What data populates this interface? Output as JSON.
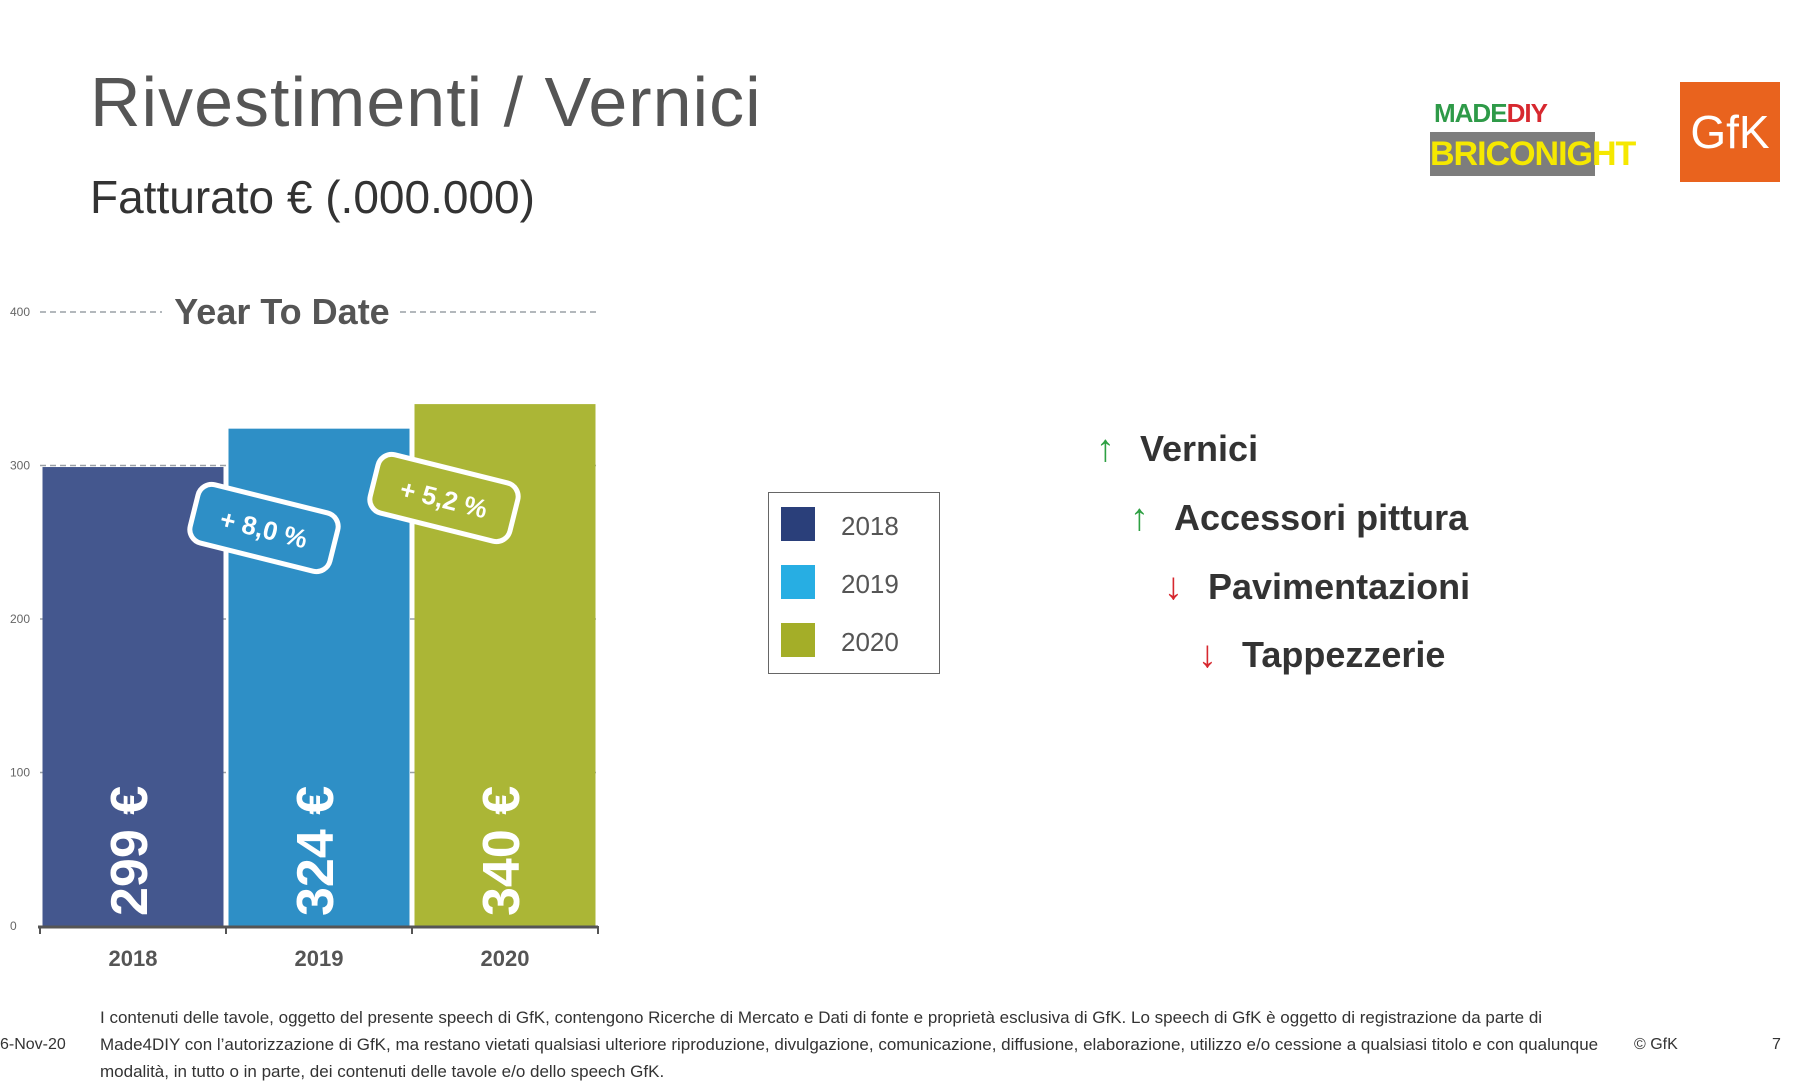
{
  "slide": {
    "title": "Rivestimenti / Vernici",
    "subtitle": "Fatturato € (.000.000)"
  },
  "logos": {
    "made4diy_top_a": "MADE",
    "made4diy_top_b": "DIY",
    "made4diy_bottom": "BRICONIGHT",
    "gfk": "GfK"
  },
  "chart_data": {
    "type": "bar",
    "title": "Year To Date",
    "categories": [
      "2018",
      "2019",
      "2020"
    ],
    "values": [
      299,
      324,
      340
    ],
    "value_labels": [
      "299 €",
      "324 €",
      "340 €"
    ],
    "colors": [
      "#44578e",
      "#2e8fc6",
      "#abb636"
    ],
    "ylim": [
      0,
      400
    ],
    "yticks": [
      0,
      100,
      200,
      300,
      400
    ],
    "grid": true,
    "annotations": [
      {
        "text": "+ 8,0 %",
        "between": [
          "2018",
          "2019"
        ],
        "color": "#2e8fc6"
      },
      {
        "text": "+ 5,2 %",
        "between": [
          "2019",
          "2020"
        ],
        "color": "#abb636"
      }
    ],
    "legend": {
      "placement": "right",
      "items": [
        {
          "label": "2018",
          "color": "#2a3f7a"
        },
        {
          "label": "2019",
          "color": "#27aee3"
        },
        {
          "label": "2020",
          "color": "#a4ae28"
        }
      ]
    }
  },
  "trends": [
    {
      "label": "Vernici",
      "direction": "up",
      "symbol": "↑"
    },
    {
      "label": "Accessori pittura",
      "direction": "up",
      "symbol": "↑"
    },
    {
      "label": "Pavimentazioni",
      "direction": "down",
      "symbol": "↓"
    },
    {
      "label": "Tappezzerie",
      "direction": "down",
      "symbol": "↓"
    }
  ],
  "footer": {
    "date": "6-Nov-20",
    "disclaimer": "I contenuti delle tavole, oggetto del presente speech di GfK, contengono Ricerche di Mercato e Dati di fonte e proprietà esclusiva di GfK. Lo speech di GfK è oggetto di registrazione da parte di Made4DIY con l’autorizzazione di GfK, ma restano vietati qualsiasi ulteriore riproduzione, divulgazione, comunicazione, diffusione, elaborazione, utilizzo e/o cessione a qualsiasi titolo e con qualunque modalità, in tutto o in parte, dei contenuti delle tavole e/o dello speech GfK.",
    "copyright": "© GfK",
    "page": "7"
  }
}
